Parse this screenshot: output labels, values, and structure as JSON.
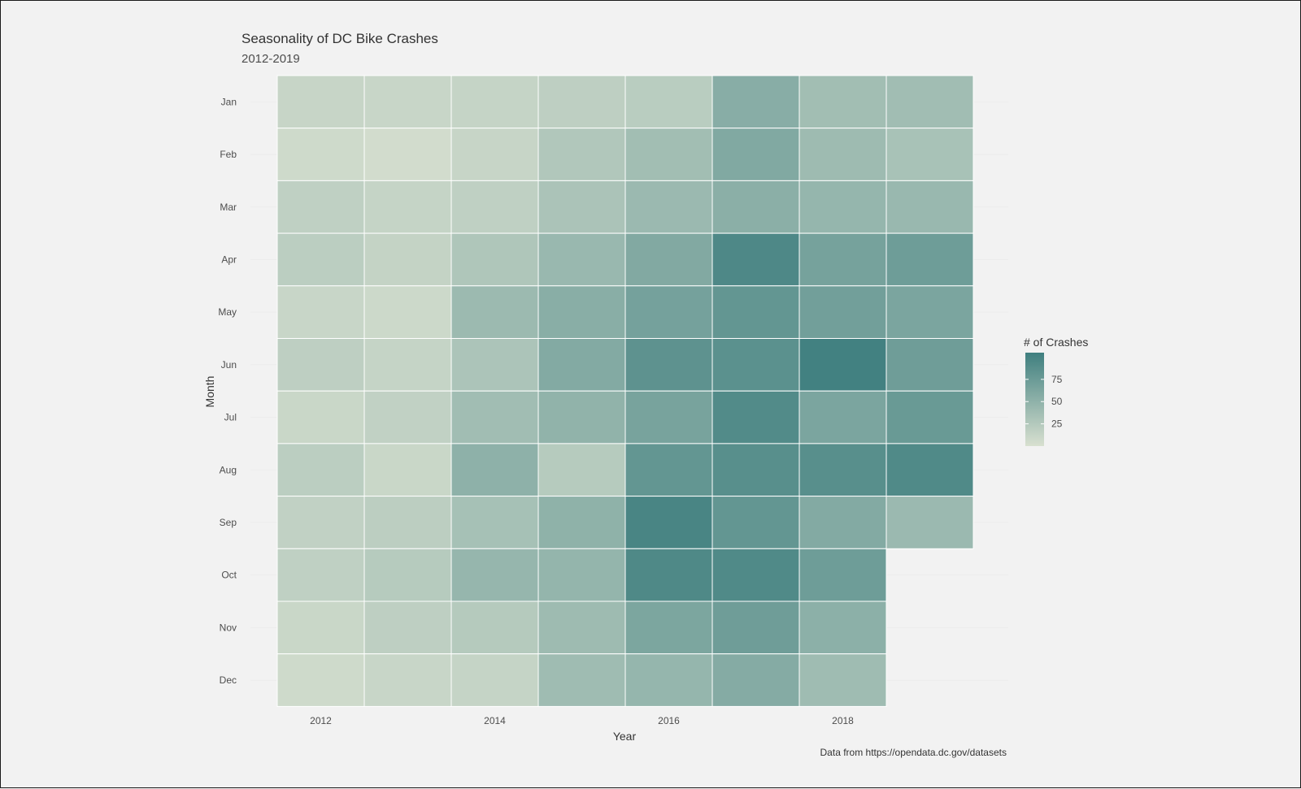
{
  "chart_data": {
    "type": "heatmap",
    "title": "Seasonality of DC Bike Crashes",
    "subtitle": "2012-2019",
    "xlabel": "Year",
    "ylabel": "Month",
    "caption": "Data from https://opendata.dc.gov/datasets",
    "x": [
      2012,
      2013,
      2014,
      2015,
      2016,
      2017,
      2018,
      2019
    ],
    "x_tick_labels": [
      "2012",
      "2014",
      "2016",
      "2018"
    ],
    "y_categories": [
      "Jan",
      "Feb",
      "Mar",
      "Apr",
      "May",
      "Jun",
      "Jul",
      "Aug",
      "Sep",
      "Oct",
      "Nov",
      "Dec"
    ],
    "values": [
      [
        12,
        11,
        13,
        18,
        21,
        55,
        37,
        38
      ],
      [
        7,
        4,
        12,
        27,
        37,
        60,
        40,
        33
      ],
      [
        17,
        13,
        17,
        31,
        42,
        53,
        46,
        43
      ],
      [
        20,
        14,
        28,
        43,
        59,
        95,
        67,
        73
      ],
      [
        11,
        8,
        41,
        54,
        68,
        80,
        70,
        64
      ],
      [
        18,
        13,
        30,
        58,
        84,
        86,
        103,
        72
      ],
      [
        10,
        16,
        38,
        49,
        66,
        92,
        64,
        76
      ],
      [
        20,
        10,
        51,
        23,
        80,
        88,
        88,
        93
      ],
      [
        16,
        19,
        34,
        50,
        98,
        80,
        58,
        42
      ],
      [
        17,
        23,
        45,
        47,
        94,
        93,
        73,
        null
      ],
      [
        10,
        18,
        24,
        40,
        63,
        72,
        52,
        null
      ],
      [
        7,
        11,
        13,
        39,
        46,
        57,
        39,
        null
      ]
    ],
    "legend": {
      "title": "# of Crashes",
      "ticks": [
        25,
        50,
        75
      ],
      "range": [
        0,
        105
      ],
      "color_low": "#d8e0d0",
      "color_high": "#3f7f7f"
    },
    "grid": true,
    "legend_position": "right"
  }
}
